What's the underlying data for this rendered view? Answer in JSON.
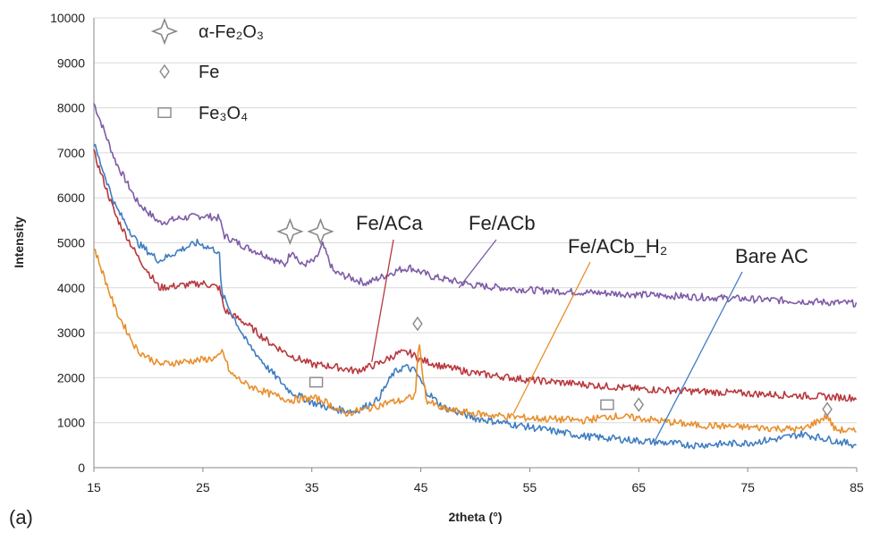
{
  "chart_data": {
    "type": "line",
    "panel_label": "(a)",
    "xlabel": "2theta (°)",
    "ylabel": "Intensity",
    "xlim": [
      15,
      85
    ],
    "ylim": [
      0,
      10000
    ],
    "xticks": [
      "15",
      "25",
      "35",
      "45",
      "55",
      "65",
      "75",
      "85"
    ],
    "yticks": [
      "0",
      "1000",
      "2000",
      "3000",
      "4000",
      "5000",
      "6000",
      "7000",
      "8000",
      "9000",
      "10000"
    ],
    "grid": "horizontal",
    "legend": {
      "placement": "top-left",
      "items": [
        {
          "label": "α-Fe₂O₃",
          "marker": "star4"
        },
        {
          "label": "Fe",
          "marker": "diamond"
        },
        {
          "label": "Fe₃O₄",
          "marker": "square"
        }
      ]
    },
    "series": [
      {
        "name": "Fe/ACb",
        "color": "#7d5ba6",
        "x": [
          15,
          17,
          19,
          21,
          23,
          25,
          26.5,
          27,
          29,
          31,
          32.5,
          33.2,
          34,
          35.3,
          36,
          37,
          40,
          43,
          44,
          46,
          50,
          55,
          60,
          65,
          70,
          75,
          80,
          85
        ],
        "y": [
          8100,
          6800,
          5900,
          5450,
          5550,
          5600,
          5550,
          5150,
          4900,
          4700,
          4500,
          4850,
          4500,
          4600,
          4950,
          4350,
          4100,
          4400,
          4450,
          4250,
          4050,
          3950,
          3900,
          3850,
          3800,
          3750,
          3700,
          3650
        ]
      },
      {
        "name": "Fe/ACa",
        "color": "#b8383d",
        "x": [
          15,
          17,
          19,
          21,
          23,
          25,
          26.5,
          27,
          29,
          31,
          33,
          35,
          37,
          39,
          41,
          43,
          44,
          45,
          47,
          50,
          55,
          60,
          65,
          70,
          75,
          80,
          85
        ],
        "y": [
          7000,
          5600,
          4700,
          4000,
          4050,
          4100,
          4000,
          3500,
          3200,
          2800,
          2500,
          2300,
          2250,
          2150,
          2300,
          2550,
          2550,
          2400,
          2250,
          2100,
          1950,
          1850,
          1750,
          1700,
          1650,
          1600,
          1550
        ]
      },
      {
        "name": "Bare AC",
        "color": "#3f7dc1",
        "x": [
          15,
          17,
          19,
          21,
          23,
          24.5,
          26.5,
          26.7,
          27.5,
          29,
          31,
          33,
          35,
          37,
          39,
          41,
          42.5,
          43.5,
          44.5,
          45.5,
          47,
          50,
          55,
          60,
          65,
          70,
          75,
          78,
          80,
          82,
          85
        ],
        "y": [
          7200,
          5800,
          5000,
          4600,
          4850,
          5000,
          4800,
          3900,
          3500,
          2800,
          2200,
          1700,
          1450,
          1300,
          1250,
          1500,
          2100,
          2250,
          2150,
          1700,
          1350,
          1100,
          900,
          700,
          600,
          500,
          550,
          650,
          750,
          650,
          500
        ]
      },
      {
        "name": "Fe/ACb_H₂",
        "color": "#e88f2c",
        "x": [
          15,
          17,
          19,
          21,
          23,
          25,
          26.5,
          26.8,
          27.5,
          29,
          31,
          33,
          35,
          36,
          38,
          40,
          42,
          43.5,
          44.5,
          44.8,
          45.5,
          47,
          50,
          55,
          60,
          62.5,
          65,
          70,
          75,
          80,
          82.3,
          83,
          85
        ],
        "y": [
          4900,
          3500,
          2600,
          2300,
          2350,
          2400,
          2450,
          2600,
          2100,
          1850,
          1650,
          1500,
          1550,
          1500,
          1200,
          1300,
          1450,
          1500,
          1600,
          2800,
          1500,
          1300,
          1200,
          1100,
          1050,
          1150,
          1100,
          950,
          900,
          850,
          1150,
          850,
          800
        ]
      }
    ],
    "callouts": [
      {
        "text": "Fe/ACa",
        "series": "Fe/ACa"
      },
      {
        "text": "Fe/ACb",
        "series": "Fe/ACb"
      },
      {
        "text": "Fe/ACb_H₂",
        "series": "Fe/ACb_H₂"
      },
      {
        "text": "Bare AC",
        "series": "Bare AC"
      }
    ],
    "peak_markers": [
      {
        "marker": "star4",
        "x": 33.0,
        "y": 5250
      },
      {
        "marker": "star4",
        "x": 35.8,
        "y": 5250
      },
      {
        "marker": "square",
        "x": 35.4,
        "y": 1900
      },
      {
        "marker": "diamond",
        "x": 44.7,
        "y": 3200
      },
      {
        "marker": "square",
        "x": 62.1,
        "y": 1400
      },
      {
        "marker": "diamond",
        "x": 65.0,
        "y": 1400
      },
      {
        "marker": "diamond",
        "x": 82.3,
        "y": 1300
      }
    ]
  }
}
